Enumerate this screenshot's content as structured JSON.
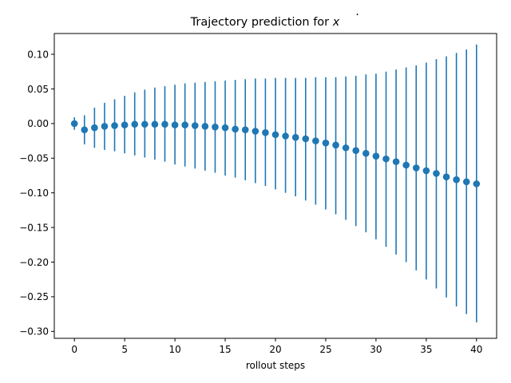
{
  "chart_data": {
    "type": "scatter",
    "title_main": "Trajectory prediction for ",
    "title_var": "x",
    "xlabel": "rollout steps",
    "ylabel": "",
    "xlim": [
      -2,
      42
    ],
    "ylim": [
      -0.31,
      0.13
    ],
    "xticks": [
      0,
      5,
      10,
      15,
      20,
      25,
      30,
      35,
      40
    ],
    "yticks": [
      0.1,
      0.05,
      0.0,
      -0.05,
      -0.1,
      -0.15,
      -0.2,
      -0.25,
      -0.3
    ],
    "ytick_labels": [
      "0.10",
      "0.05",
      "0.00",
      "−0.05",
      "−0.10",
      "−0.15",
      "−0.20",
      "−0.25",
      "−0.30"
    ],
    "grid": false,
    "color": "#1f77b4",
    "series": [
      {
        "x": [
          0,
          1,
          2,
          3,
          4,
          5,
          6,
          7,
          8,
          9,
          10,
          11,
          12,
          13,
          14,
          15,
          16,
          17,
          18,
          19,
          20,
          21,
          22,
          23,
          24,
          25,
          26,
          27,
          28,
          29,
          30,
          31,
          32,
          33,
          34,
          35,
          36,
          37,
          38,
          39,
          40
        ],
        "y": [
          0.0,
          -0.009,
          -0.006,
          -0.004,
          -0.003,
          -0.002,
          -0.001,
          -0.001,
          -0.001,
          -0.001,
          -0.002,
          -0.002,
          -0.003,
          -0.004,
          -0.005,
          -0.006,
          -0.008,
          -0.009,
          -0.011,
          -0.013,
          -0.016,
          -0.018,
          -0.02,
          -0.022,
          -0.025,
          -0.028,
          -0.031,
          -0.035,
          -0.039,
          -0.043,
          -0.047,
          -0.051,
          -0.055,
          -0.06,
          -0.064,
          -0.068,
          -0.072,
          -0.077,
          -0.081,
          -0.084,
          -0.087
        ],
        "y_upper": [
          0.009,
          0.012,
          0.023,
          0.03,
          0.035,
          0.04,
          0.045,
          0.049,
          0.052,
          0.054,
          0.056,
          0.058,
          0.059,
          0.06,
          0.061,
          0.062,
          0.063,
          0.064,
          0.065,
          0.065,
          0.066,
          0.066,
          0.066,
          0.066,
          0.067,
          0.067,
          0.067,
          0.068,
          0.069,
          0.071,
          0.072,
          0.075,
          0.078,
          0.081,
          0.084,
          0.088,
          0.093,
          0.097,
          0.102,
          0.107,
          0.114
        ],
        "y_lower": [
          -0.009,
          -0.03,
          -0.035,
          -0.038,
          -0.04,
          -0.043,
          -0.046,
          -0.049,
          -0.052,
          -0.055,
          -0.059,
          -0.062,
          -0.065,
          -0.068,
          -0.071,
          -0.075,
          -0.078,
          -0.082,
          -0.086,
          -0.09,
          -0.095,
          -0.1,
          -0.105,
          -0.111,
          -0.117,
          -0.124,
          -0.131,
          -0.139,
          -0.148,
          -0.157,
          -0.167,
          -0.178,
          -0.189,
          -0.2,
          -0.212,
          -0.225,
          -0.238,
          -0.251,
          -0.264,
          -0.275,
          -0.287
        ]
      }
    ]
  }
}
